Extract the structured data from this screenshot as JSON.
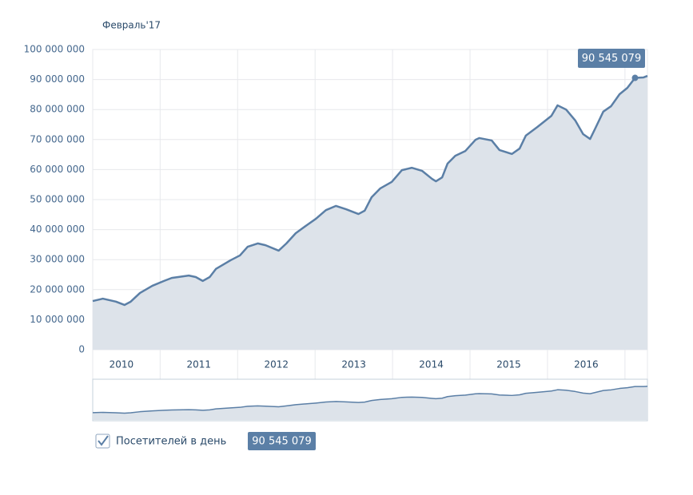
{
  "chart_data": {
    "type": "area",
    "hover_label": "Февраль'17",
    "x": [
      2010.13,
      2010.26,
      2010.43,
      2010.54,
      2010.62,
      2010.74,
      2010.9,
      2011.05,
      2011.15,
      2011.37,
      2011.46,
      2011.55,
      2011.64,
      2011.72,
      2011.91,
      2012.03,
      2012.13,
      2012.26,
      2012.36,
      2012.53,
      2012.63,
      2012.75,
      2012.91,
      2013.01,
      2013.14,
      2013.27,
      2013.4,
      2013.56,
      2013.64,
      2013.73,
      2013.84,
      2013.99,
      2014.12,
      2014.25,
      2014.38,
      2014.51,
      2014.56,
      2014.64,
      2014.71,
      2014.81,
      2014.94,
      2015.07,
      2015.12,
      2015.28,
      2015.38,
      2015.54,
      2015.64,
      2015.72,
      2015.87,
      2016.05,
      2016.13,
      2016.24,
      2016.36,
      2016.46,
      2016.55,
      2016.62,
      2016.72,
      2016.82,
      2016.93,
      2017.03,
      2017.13,
      2017.24,
      2017.29
    ],
    "series": [
      {
        "name": "Посетителей в день",
        "color": "#5b7fa6",
        "fill": "#dde3ea",
        "values": [
          16200000,
          17000000,
          16000000,
          14900000,
          16000000,
          18900000,
          21300000,
          22900000,
          23900000,
          24700000,
          24200000,
          22900000,
          24200000,
          26900000,
          29800000,
          31400000,
          34300000,
          35400000,
          34800000,
          33000000,
          35400000,
          38800000,
          41800000,
          43600000,
          46500000,
          47900000,
          46800000,
          45200000,
          46300000,
          50800000,
          53700000,
          55900000,
          59800000,
          60600000,
          59600000,
          56900000,
          56100000,
          57400000,
          62000000,
          64600000,
          66200000,
          69900000,
          70500000,
          69700000,
          66500000,
          65200000,
          67000000,
          71300000,
          74200000,
          77900000,
          81400000,
          80000000,
          76300000,
          71800000,
          70200000,
          73900000,
          79300000,
          81100000,
          85100000,
          87200000,
          90545079,
          90700000,
          91200000
        ],
        "value_labels": [
          null,
          null,
          null,
          null,
          null,
          null,
          null,
          null,
          null,
          null,
          null,
          null,
          null,
          null,
          null,
          null,
          null,
          null,
          null,
          null,
          null,
          null,
          null,
          null,
          null,
          null,
          null,
          null,
          null,
          null,
          null,
          null,
          null,
          null,
          null,
          null,
          null,
          null,
          null,
          null,
          null,
          null,
          null,
          null,
          null,
          null,
          null,
          null,
          null,
          null,
          null,
          null,
          null,
          null,
          null,
          null,
          null,
          null,
          null,
          null,
          "90 545 079",
          null,
          null
        ]
      }
    ],
    "xlim": [
      2010.13,
      2017.29
    ],
    "xticks": [
      {
        "value": 2010.5,
        "label": "2010"
      },
      {
        "value": 2011.5,
        "label": "2011"
      },
      {
        "value": 2012.5,
        "label": "2012"
      },
      {
        "value": 2013.5,
        "label": "2013"
      },
      {
        "value": 2014.5,
        "label": "2014"
      },
      {
        "value": 2015.5,
        "label": "2015"
      },
      {
        "value": 2016.5,
        "label": "2016"
      }
    ],
    "ylim": [
      0,
      100000000
    ],
    "yticks": [
      0,
      {
        "value": 10000000,
        "label": "10 000 000"
      },
      {
        "value": 20000000,
        "label": "20 000 000"
      },
      {
        "value": 30000000,
        "label": "30 000 000"
      },
      {
        "value": 40000000,
        "label": "40 000 000"
      },
      {
        "value": 50000000,
        "label": "50 000 000"
      },
      {
        "value": 60000000,
        "label": "60 000 000"
      },
      {
        "value": 70000000,
        "label": "70 000 000"
      },
      {
        "value": 80000000,
        "label": "80 000 000"
      },
      {
        "value": 90000000,
        "label": "90 000 000"
      },
      {
        "value": 100000000,
        "label": "100 000 000"
      }
    ],
    "grid": true
  }
}
